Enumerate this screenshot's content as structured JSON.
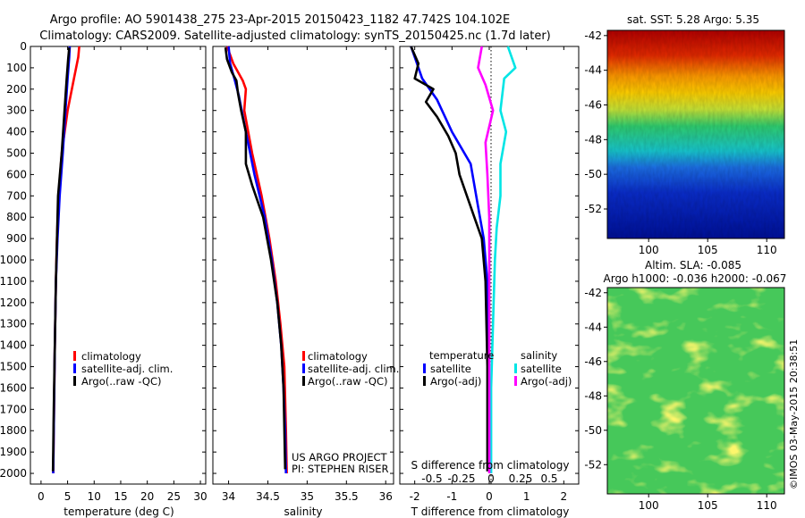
{
  "title_line1": "Argo profile: AO 5901438_275 23-Apr-2015 20150423_1182 47.742S 104.102E",
  "title_line2": "Climatology: CARS2009. Satellite-adjusted climatology: synTS_20150425.nc (1.7d later)",
  "credit_project": "US ARGO PROJECT",
  "credit_pi": "PI: STEPHEN RISER",
  "imos_stamp": "©IMOS 03-May-2015 20:38:51",
  "colors": {
    "climatology": "#ff0000",
    "satellite": "#0000ff",
    "argo": "#000000",
    "salinity_satellite": "#00e5e5",
    "salinity_argo": "#ff00ff"
  },
  "chart_data": [
    {
      "type": "line",
      "panel": "temperature",
      "xlabel": "temperature (deg C)",
      "ylabel": "",
      "xlim": [
        -2,
        31
      ],
      "ylim": [
        0,
        2050
      ],
      "y_reversed": true,
      "xticks": [
        0,
        5,
        10,
        15,
        20,
        25,
        30
      ],
      "yticks": [
        0,
        100,
        200,
        300,
        400,
        500,
        600,
        700,
        800,
        900,
        1000,
        1100,
        1200,
        1300,
        1400,
        1500,
        1600,
        1700,
        1800,
        1900,
        2000
      ],
      "legend": [
        "climatology",
        "satellite-adj. clim.",
        "Argo(..raw -QC)"
      ],
      "series": [
        {
          "name": "climatology",
          "color": "#ff0000",
          "x": [
            7.2,
            7.0,
            6.2,
            5.0,
            3.9,
            3.3,
            3.0,
            2.8,
            2.6,
            2.45,
            2.35,
            2.3
          ],
          "y": [
            0,
            50,
            150,
            300,
            500,
            700,
            900,
            1100,
            1400,
            1700,
            1900,
            2000
          ]
        },
        {
          "name": "satellite-adj. clim.",
          "color": "#0000ff",
          "x": [
            5.4,
            5.3,
            5.0,
            4.6,
            4.1,
            3.5,
            3.1,
            2.8,
            2.6,
            2.45,
            2.35,
            2.3
          ],
          "y": [
            0,
            50,
            150,
            300,
            500,
            700,
            900,
            1100,
            1400,
            1700,
            1900,
            2000
          ]
        },
        {
          "name": "Argo(..raw -QC)",
          "color": "#000000",
          "x": [
            5.3,
            5.1,
            4.8,
            4.4,
            3.9,
            3.2,
            3.0,
            2.8,
            2.6,
            2.4,
            2.3,
            2.25
          ],
          "y": [
            5,
            60,
            160,
            310,
            500,
            700,
            900,
            1100,
            1400,
            1700,
            1900,
            1990
          ]
        }
      ]
    },
    {
      "type": "line",
      "panel": "salinity",
      "xlabel": "salinity",
      "ylabel": "",
      "xlim": [
        33.8,
        36.1
      ],
      "ylim": [
        0,
        2050
      ],
      "y_reversed": true,
      "xticks": [
        34,
        34.5,
        35,
        35.5,
        36
      ],
      "legend": [
        "climatology",
        "satellite-adj. clim.",
        "Argo(..raw -QC)"
      ],
      "series": [
        {
          "name": "climatology",
          "color": "#ff0000",
          "x": [
            33.98,
            34.06,
            34.18,
            34.22,
            34.2,
            34.3,
            34.42,
            34.52,
            34.6,
            34.66,
            34.71,
            34.73,
            34.74
          ],
          "y": [
            0,
            80,
            160,
            200,
            300,
            500,
            700,
            900,
            1100,
            1300,
            1500,
            1800,
            2000
          ]
        },
        {
          "name": "satellite-adj. clim.",
          "color": "#0000ff",
          "x": [
            34.0,
            34.02,
            34.08,
            34.13,
            34.22,
            34.33,
            34.46,
            34.55,
            34.62,
            34.67,
            34.7,
            34.72,
            34.73
          ],
          "y": [
            0,
            80,
            160,
            230,
            400,
            600,
            800,
            1000,
            1200,
            1400,
            1600,
            1800,
            2000
          ]
        },
        {
          "name": "Argo(..raw -QC)",
          "color": "#000000",
          "x": [
            33.96,
            33.98,
            34.04,
            34.1,
            34.12,
            34.16,
            34.22,
            34.22,
            34.3,
            34.44,
            34.54,
            34.62,
            34.67,
            34.7,
            34.72
          ],
          "y": [
            5,
            60,
            120,
            160,
            220,
            300,
            400,
            550,
            650,
            800,
            1000,
            1200,
            1400,
            1600,
            1980
          ]
        }
      ]
    },
    {
      "type": "line",
      "panel": "difference",
      "xlabel": "T difference from climatology",
      "xlabel_top": "S difference from climatology",
      "ylabel": "",
      "xlim": [
        -2.4,
        2.4
      ],
      "ylim": [
        0,
        2050
      ],
      "y_reversed": true,
      "xticks": [
        -2,
        -1,
        0,
        1,
        2
      ],
      "xticks_top": [
        "-0.5",
        "-0.25",
        "0",
        "0.25",
        "0.5"
      ],
      "legend_headers": [
        "temperature",
        "salinity"
      ],
      "legend": [
        "satellite",
        "Argo(-adj)",
        "satellite",
        "Argo(-adj)"
      ],
      "series": [
        {
          "name": "temperature satellite",
          "color": "#0000ff",
          "x": [
            -2.1,
            -2.0,
            -1.8,
            -1.4,
            -1.0,
            -0.5,
            -0.3,
            -0.15,
            -0.05,
            -0.02,
            0.0
          ],
          "y": [
            0,
            50,
            150,
            250,
            400,
            550,
            750,
            900,
            1100,
            1500,
            1980
          ]
        },
        {
          "name": "temperature Argo(-adj)",
          "color": "#000000",
          "x": [
            -2.1,
            -1.9,
            -2.0,
            -1.5,
            -1.7,
            -1.4,
            -1.1,
            -0.9,
            -0.8,
            -0.6,
            -0.4,
            -0.2,
            -0.1,
            -0.05,
            -0.05
          ],
          "y": [
            0,
            80,
            150,
            200,
            260,
            330,
            420,
            500,
            600,
            700,
            800,
            900,
            1100,
            1500,
            1990
          ]
        },
        {
          "name": "salinity satellite",
          "color": "#00e5e5",
          "x": [
            0.5,
            0.7,
            0.4,
            0.3,
            0.45,
            0.3,
            0.3,
            0.2,
            0.15,
            0.1,
            0.05,
            0.05
          ],
          "y": [
            0,
            100,
            150,
            300,
            400,
            550,
            700,
            850,
            1000,
            1300,
            1600,
            2000
          ]
        },
        {
          "name": "salinity Argo(-adj)",
          "color": "#ff00ff",
          "x": [
            -0.2,
            -0.3,
            -0.1,
            0.1,
            -0.1,
            -0.05,
            0.0,
            0.0,
            0.0,
            0.0
          ],
          "y": [
            0,
            100,
            180,
            300,
            450,
            600,
            800,
            1100,
            1500,
            2000
          ]
        }
      ]
    },
    {
      "type": "heatmap",
      "panel": "satellite SST",
      "title": "sat. SST: 5.28  Argo: 5.35",
      "xticks": [
        100,
        105,
        110
      ],
      "yticks": [
        -42,
        -44,
        -46,
        -48,
        -50,
        -52
      ],
      "xlim": [
        96.5,
        111.5
      ],
      "ylim": [
        -53.7,
        -41.7
      ]
    },
    {
      "type": "heatmap",
      "panel": "altimeter SLA",
      "title": "Altim. SLA: -0.085",
      "subtitle": "Argo h1000: -0.036 h2000: -0.067",
      "xticks": [
        100,
        105,
        110
      ],
      "yticks": [
        -42,
        -44,
        -46,
        -48,
        -50,
        -52
      ],
      "xlim": [
        96.5,
        111.5
      ],
      "ylim": [
        -53.7,
        -41.7
      ]
    }
  ]
}
